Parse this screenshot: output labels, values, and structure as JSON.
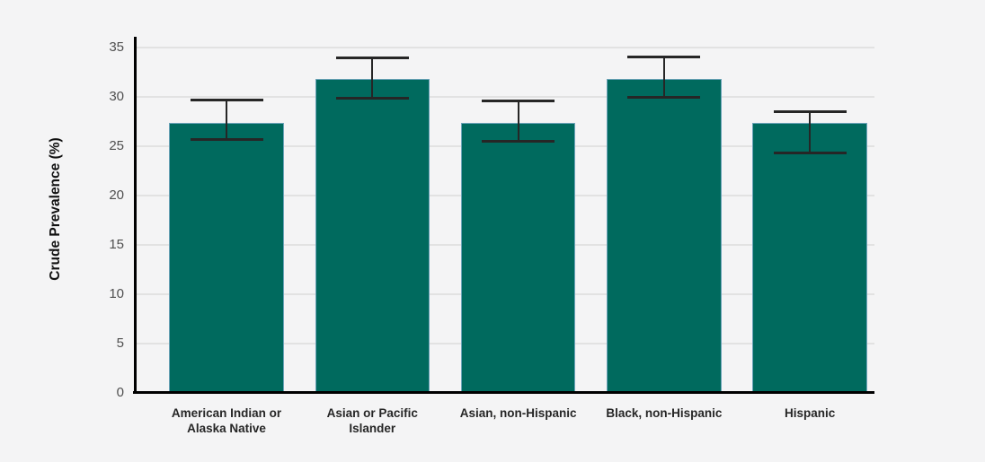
{
  "chart_data": {
    "type": "bar",
    "title": "",
    "ylabel": "Crude Prevalence (%)",
    "xlabel": "",
    "categories": [
      "American Indian or Alaska Native",
      "Asian or Pacific Islander",
      "Asian, non-Hispanic",
      "Black, non-Hispanic",
      "Hispanic"
    ],
    "category_label_lines": [
      [
        "American Indian or",
        "Alaska Native"
      ],
      [
        "Asian or Pacific",
        "Islander"
      ],
      [
        "Asian, non-Hispanic"
      ],
      [
        "Black, non-Hispanic"
      ],
      [
        "Hispanic"
      ]
    ],
    "values": [
      27.4,
      31.8,
      27.4,
      31.8,
      27.4
    ],
    "error_bars": {
      "low": [
        25.6,
        29.8,
        25.5,
        29.9,
        24.3
      ],
      "high": [
        29.8,
        34.1,
        29.7,
        34.2,
        28.6
      ]
    },
    "ylim": [
      0,
      36.1
    ],
    "yticks": [
      0,
      5,
      10,
      15,
      20,
      25,
      30,
      35
    ],
    "grid": true,
    "legend": "none",
    "colors": {
      "bar_fill": "#006A5E",
      "bar_border": "#6BA3B8",
      "error_bar": "#262626",
      "axis": "#000000",
      "gridline": "#e2e2e2",
      "tick_label": "#4f4f4f",
      "category_label": "#262626",
      "background": "#f4f4f5"
    }
  }
}
